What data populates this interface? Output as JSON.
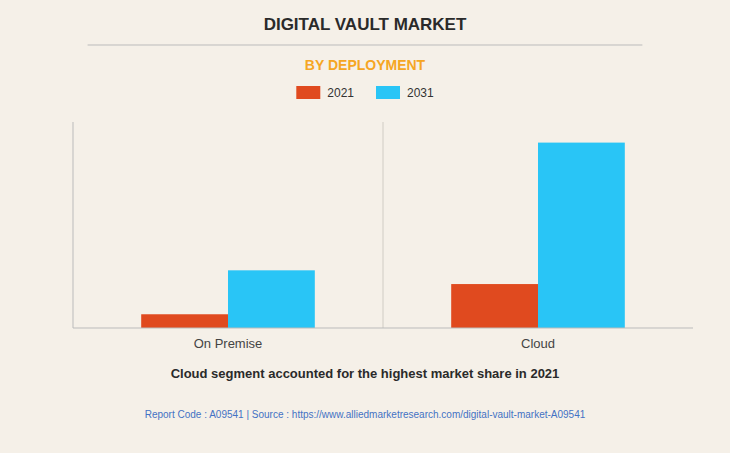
{
  "chart_data": {
    "type": "bar",
    "title": "DIGITAL VAULT MARKET",
    "subtitle": "BY DEPLOYMENT",
    "categories": [
      "On Premise",
      "Cloud"
    ],
    "series": [
      {
        "name": "2021",
        "color": "#E04A1F",
        "values": [
          1,
          3.2
        ]
      },
      {
        "name": "2031",
        "color": "#29C5F6",
        "values": [
          4.2,
          13.5
        ]
      }
    ],
    "ylim": [
      0,
      15
    ],
    "yticks": [],
    "grid": false,
    "tick_labels": "x",
    "legend": "top",
    "annotations": [
      "Cloud segment accounted for the highest market share in 2021",
      "Report Code : A09541  |  Source : https://www.alliedmarketresearch.com/digital-vault-market-A09541"
    ]
  }
}
